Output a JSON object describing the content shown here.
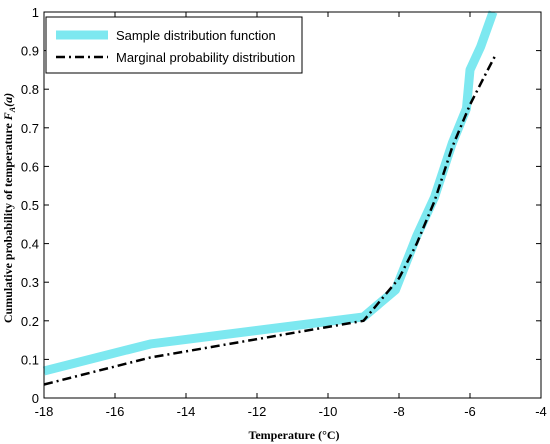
{
  "chart_data": {
    "type": "line",
    "xlabel": "Temperature (°C)",
    "ylabel_main": "Cumulative probability of temperature ",
    "ylabel_symbol": "F",
    "ylabel_subscript": "A",
    "ylabel_arg": "(a)",
    "xlim": [
      -18,
      -4
    ],
    "ylim": [
      0,
      1
    ],
    "xticks": [
      -18,
      -16,
      -14,
      -12,
      -10,
      -8,
      -6,
      -4
    ],
    "yticks": [
      0,
      0.1,
      0.2,
      0.3,
      0.4,
      0.5,
      0.6,
      0.7,
      0.8,
      0.9,
      1
    ],
    "grid": false,
    "legend_position": "top-left",
    "series": [
      {
        "name": "Sample distribution function",
        "color": "#7de8f0",
        "style": "solid-thick",
        "x": [
          -18,
          -15,
          -9,
          -8.1,
          -7.5,
          -7.0,
          -6.5,
          -6.1,
          -6.0,
          -5.7,
          -5.35
        ],
        "y": [
          0.07,
          0.14,
          0.21,
          0.28,
          0.42,
          0.52,
          0.66,
          0.75,
          0.85,
          0.91,
          1.0
        ]
      },
      {
        "name": "Marginal probability distribution",
        "color": "#000000",
        "style": "dash-dot",
        "x": [
          -18,
          -15,
          -9,
          -8,
          -7.5,
          -7.0,
          -6.5,
          -6.0,
          -5.5,
          -5.3
        ],
        "y": [
          0.035,
          0.105,
          0.2,
          0.31,
          0.4,
          0.51,
          0.65,
          0.76,
          0.85,
          0.885
        ]
      }
    ]
  }
}
